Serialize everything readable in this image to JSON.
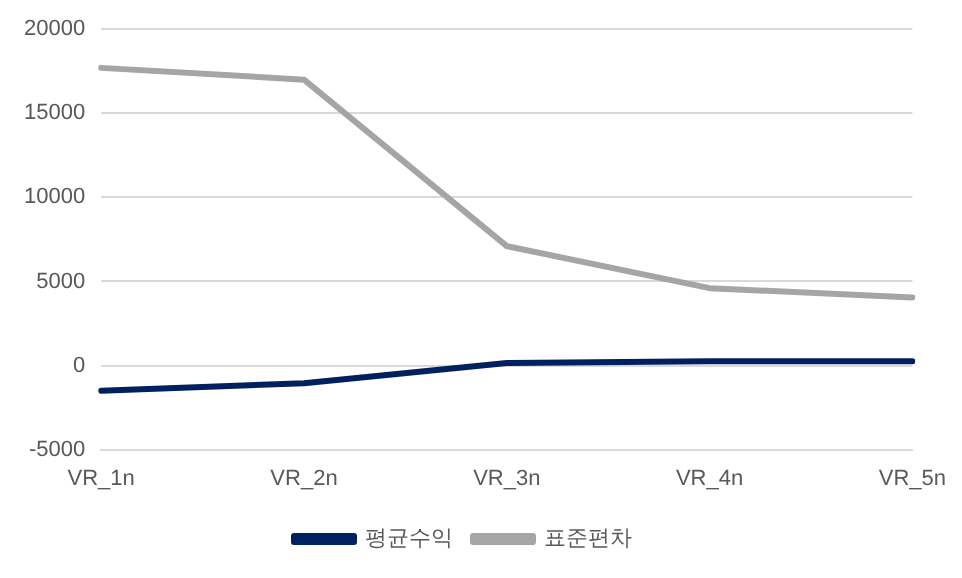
{
  "chart_data": {
    "type": "line",
    "categories": [
      "VR_1n",
      "VR_2n",
      "VR_3n",
      "VR_4n",
      "VR_5n"
    ],
    "series": [
      {
        "name": "평균수익",
        "color": "#002060",
        "values": [
          -1500,
          -1050,
          150,
          250,
          250
        ]
      },
      {
        "name": "표준편차",
        "color": "#a5a5a5",
        "values": [
          17700,
          17000,
          7100,
          4600,
          4050
        ]
      }
    ],
    "ylim": [
      -5000,
      20000
    ],
    "yticks": [
      -5000,
      0,
      5000,
      10000,
      15000,
      20000
    ],
    "grid": "y",
    "legend": "bottom",
    "marker": "none",
    "line_style": "solid"
  }
}
